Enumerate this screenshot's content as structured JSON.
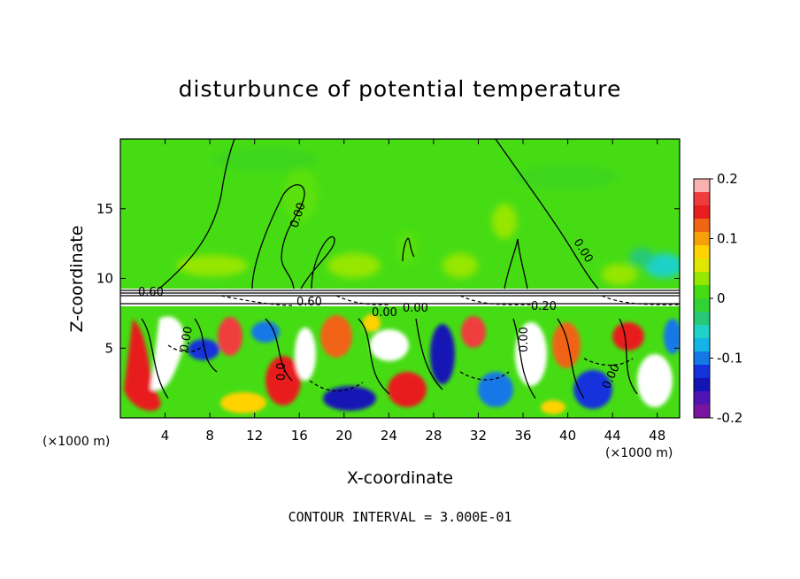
{
  "chart_data": {
    "type": "heatmap",
    "title": "disturbunce of potential temperature",
    "xlabel": "X-coordinate",
    "ylabel": "Z-coordinate",
    "x_unit": "(×1000 m)",
    "x_ticks": [
      4,
      8,
      12,
      16,
      20,
      24,
      28,
      32,
      36,
      40,
      44,
      48
    ],
    "y_ticks": [
      5,
      10,
      15
    ],
    "xlim": [
      0,
      50
    ],
    "ylim": [
      0,
      20
    ],
    "colorbar": {
      "range": [
        -0.2,
        0.2
      ],
      "ticks": [
        "0.2",
        "0.1",
        "0",
        "-0.1",
        "-0.2"
      ],
      "colors": [
        "#f8b0b0",
        "#f03c3c",
        "#e81e1e",
        "#f06414",
        "#f5a00a",
        "#ffd200",
        "#e1e600",
        "#96e600",
        "#46dc14",
        "#32d232",
        "#28c878",
        "#1ed2c8",
        "#14b4e6",
        "#1478e6",
        "#1432dc",
        "#1414b4",
        "#5014b4",
        "#7814a0"
      ]
    },
    "contour_labels": [
      "0.00",
      "0.00",
      "0.00",
      "0.60",
      "0.00",
      "0.00",
      "0.00",
      "0.0",
      "0.00",
      "0.20",
      "0.60"
    ],
    "contour_interval_text": "CONTOUR INTERVAL = 3.000E-01"
  }
}
